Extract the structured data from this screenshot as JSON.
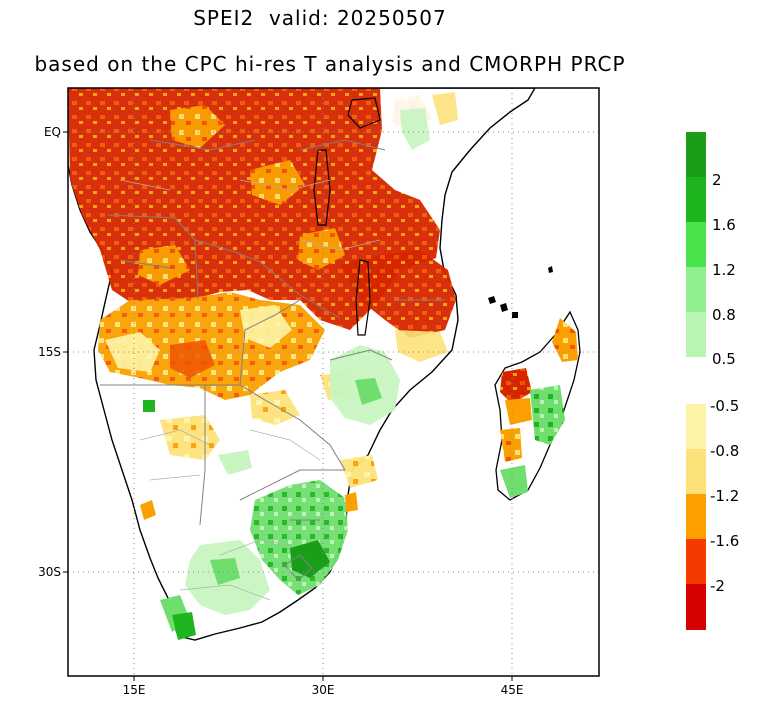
{
  "title": "SPEI2  valid: 20250507",
  "subtitle": "based on the CPC hi-res T analysis and CMORPH PRCP",
  "map": {
    "region": "Southern Africa",
    "lon_range": [
      10,
      48
    ],
    "lat_range": [
      -38,
      2
    ],
    "x_ticks": [
      {
        "lon": 15,
        "label": "15E"
      },
      {
        "lon": 30,
        "label": "30E"
      },
      {
        "lon": 45,
        "label": "45E"
      }
    ],
    "y_ticks": [
      {
        "lat": 0,
        "label": "EQ"
      },
      {
        "lat": -15,
        "label": "15S"
      },
      {
        "lat": -30,
        "label": "30S"
      }
    ],
    "grid": "dotted"
  },
  "colorbar": {
    "positive": [
      {
        "label": "2",
        "color": "#1fb51f"
      },
      {
        "label": "1.6",
        "color": "#4be34b"
      },
      {
        "label": "1.2",
        "color": "#8fef8f"
      },
      {
        "label": "0.8",
        "color": "#b8f5b0"
      },
      {
        "label": "0.5",
        "color": "#e3fbe0"
      }
    ],
    "positive_top_color": "#1a9e1a",
    "negative": [
      {
        "label": "-0.5",
        "color": "#fdf5a6"
      },
      {
        "label": "-0.8",
        "color": "#fde27a"
      },
      {
        "label": "-1.2",
        "color": "#fba000"
      },
      {
        "label": "-1.6",
        "color": "#f53a00"
      },
      {
        "label": "-2",
        "color": "#e01a00"
      }
    ],
    "negative_bottom_color": "#d60000"
  },
  "colors": {
    "extreme_drought": "#d62400",
    "severe_drought": "#f05500",
    "moderate_drought": "#fba000",
    "mild_drought": "#fde27a",
    "light_dry": "#fdf5a6",
    "light_wet": "#c8f5c0",
    "moderate_wet": "#6fde6f",
    "very_wet": "#1fb51f"
  }
}
